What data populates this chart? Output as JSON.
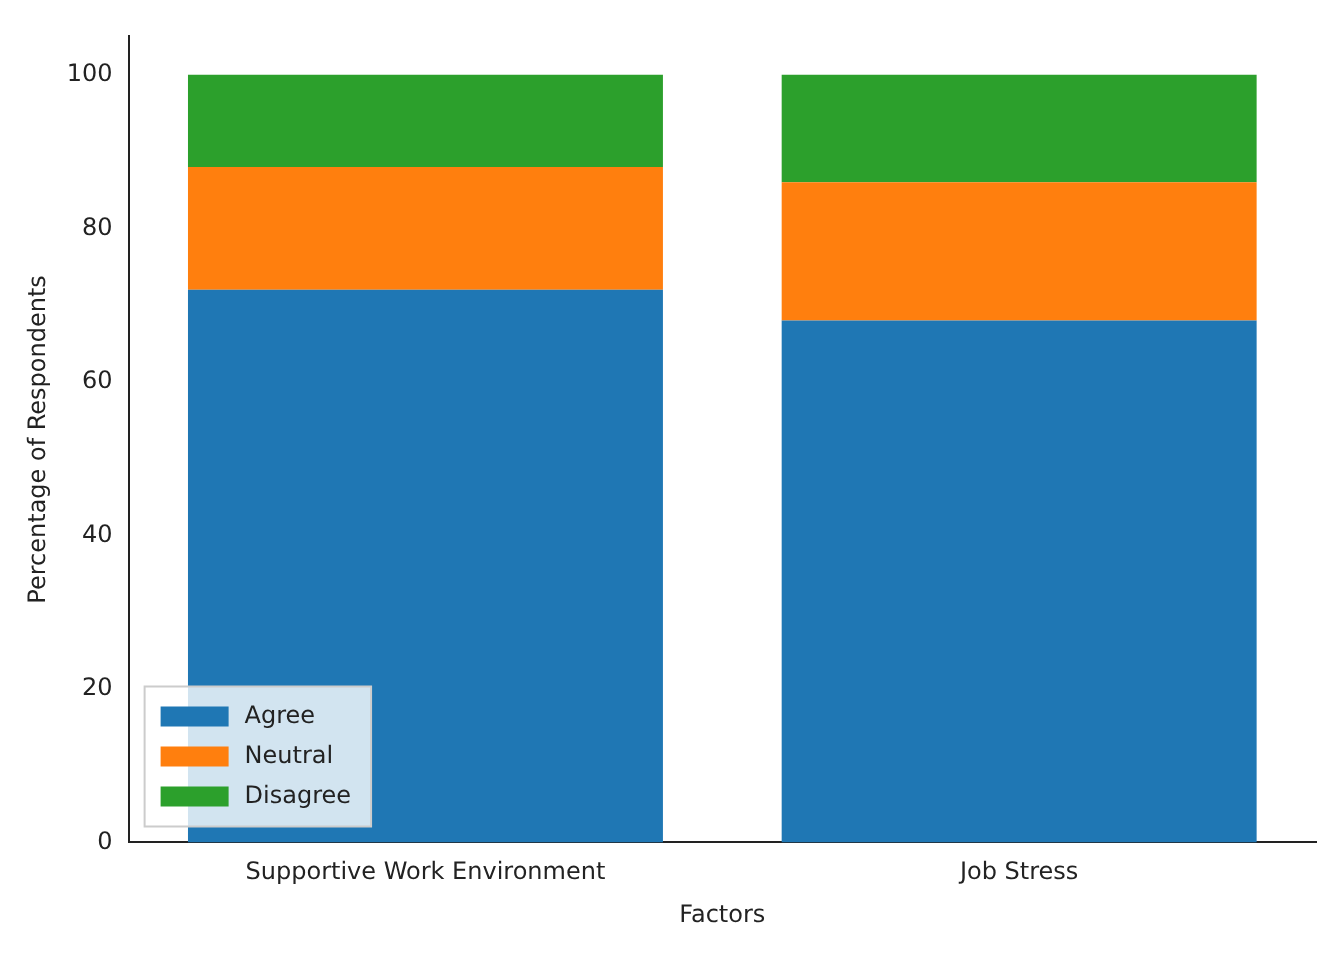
{
  "chart_data": {
    "type": "bar",
    "stacked": true,
    "xlabel": "Factors",
    "ylabel": "Percentage of Respondents",
    "categories": [
      "Supportive Work Environment",
      "Job Stress"
    ],
    "series": [
      {
        "name": "Agree",
        "color": "#1f77b4",
        "values": [
          72,
          68
        ]
      },
      {
        "name": "Neutral",
        "color": "#ff7f0e",
        "values": [
          16,
          18
        ]
      },
      {
        "name": "Disagree",
        "color": "#2ca02c",
        "values": [
          12,
          14
        ]
      }
    ],
    "ylim": [
      0,
      105
    ],
    "yticks": [
      0,
      20,
      40,
      60,
      80,
      100
    ],
    "grid": false,
    "legend": "bottom left"
  }
}
